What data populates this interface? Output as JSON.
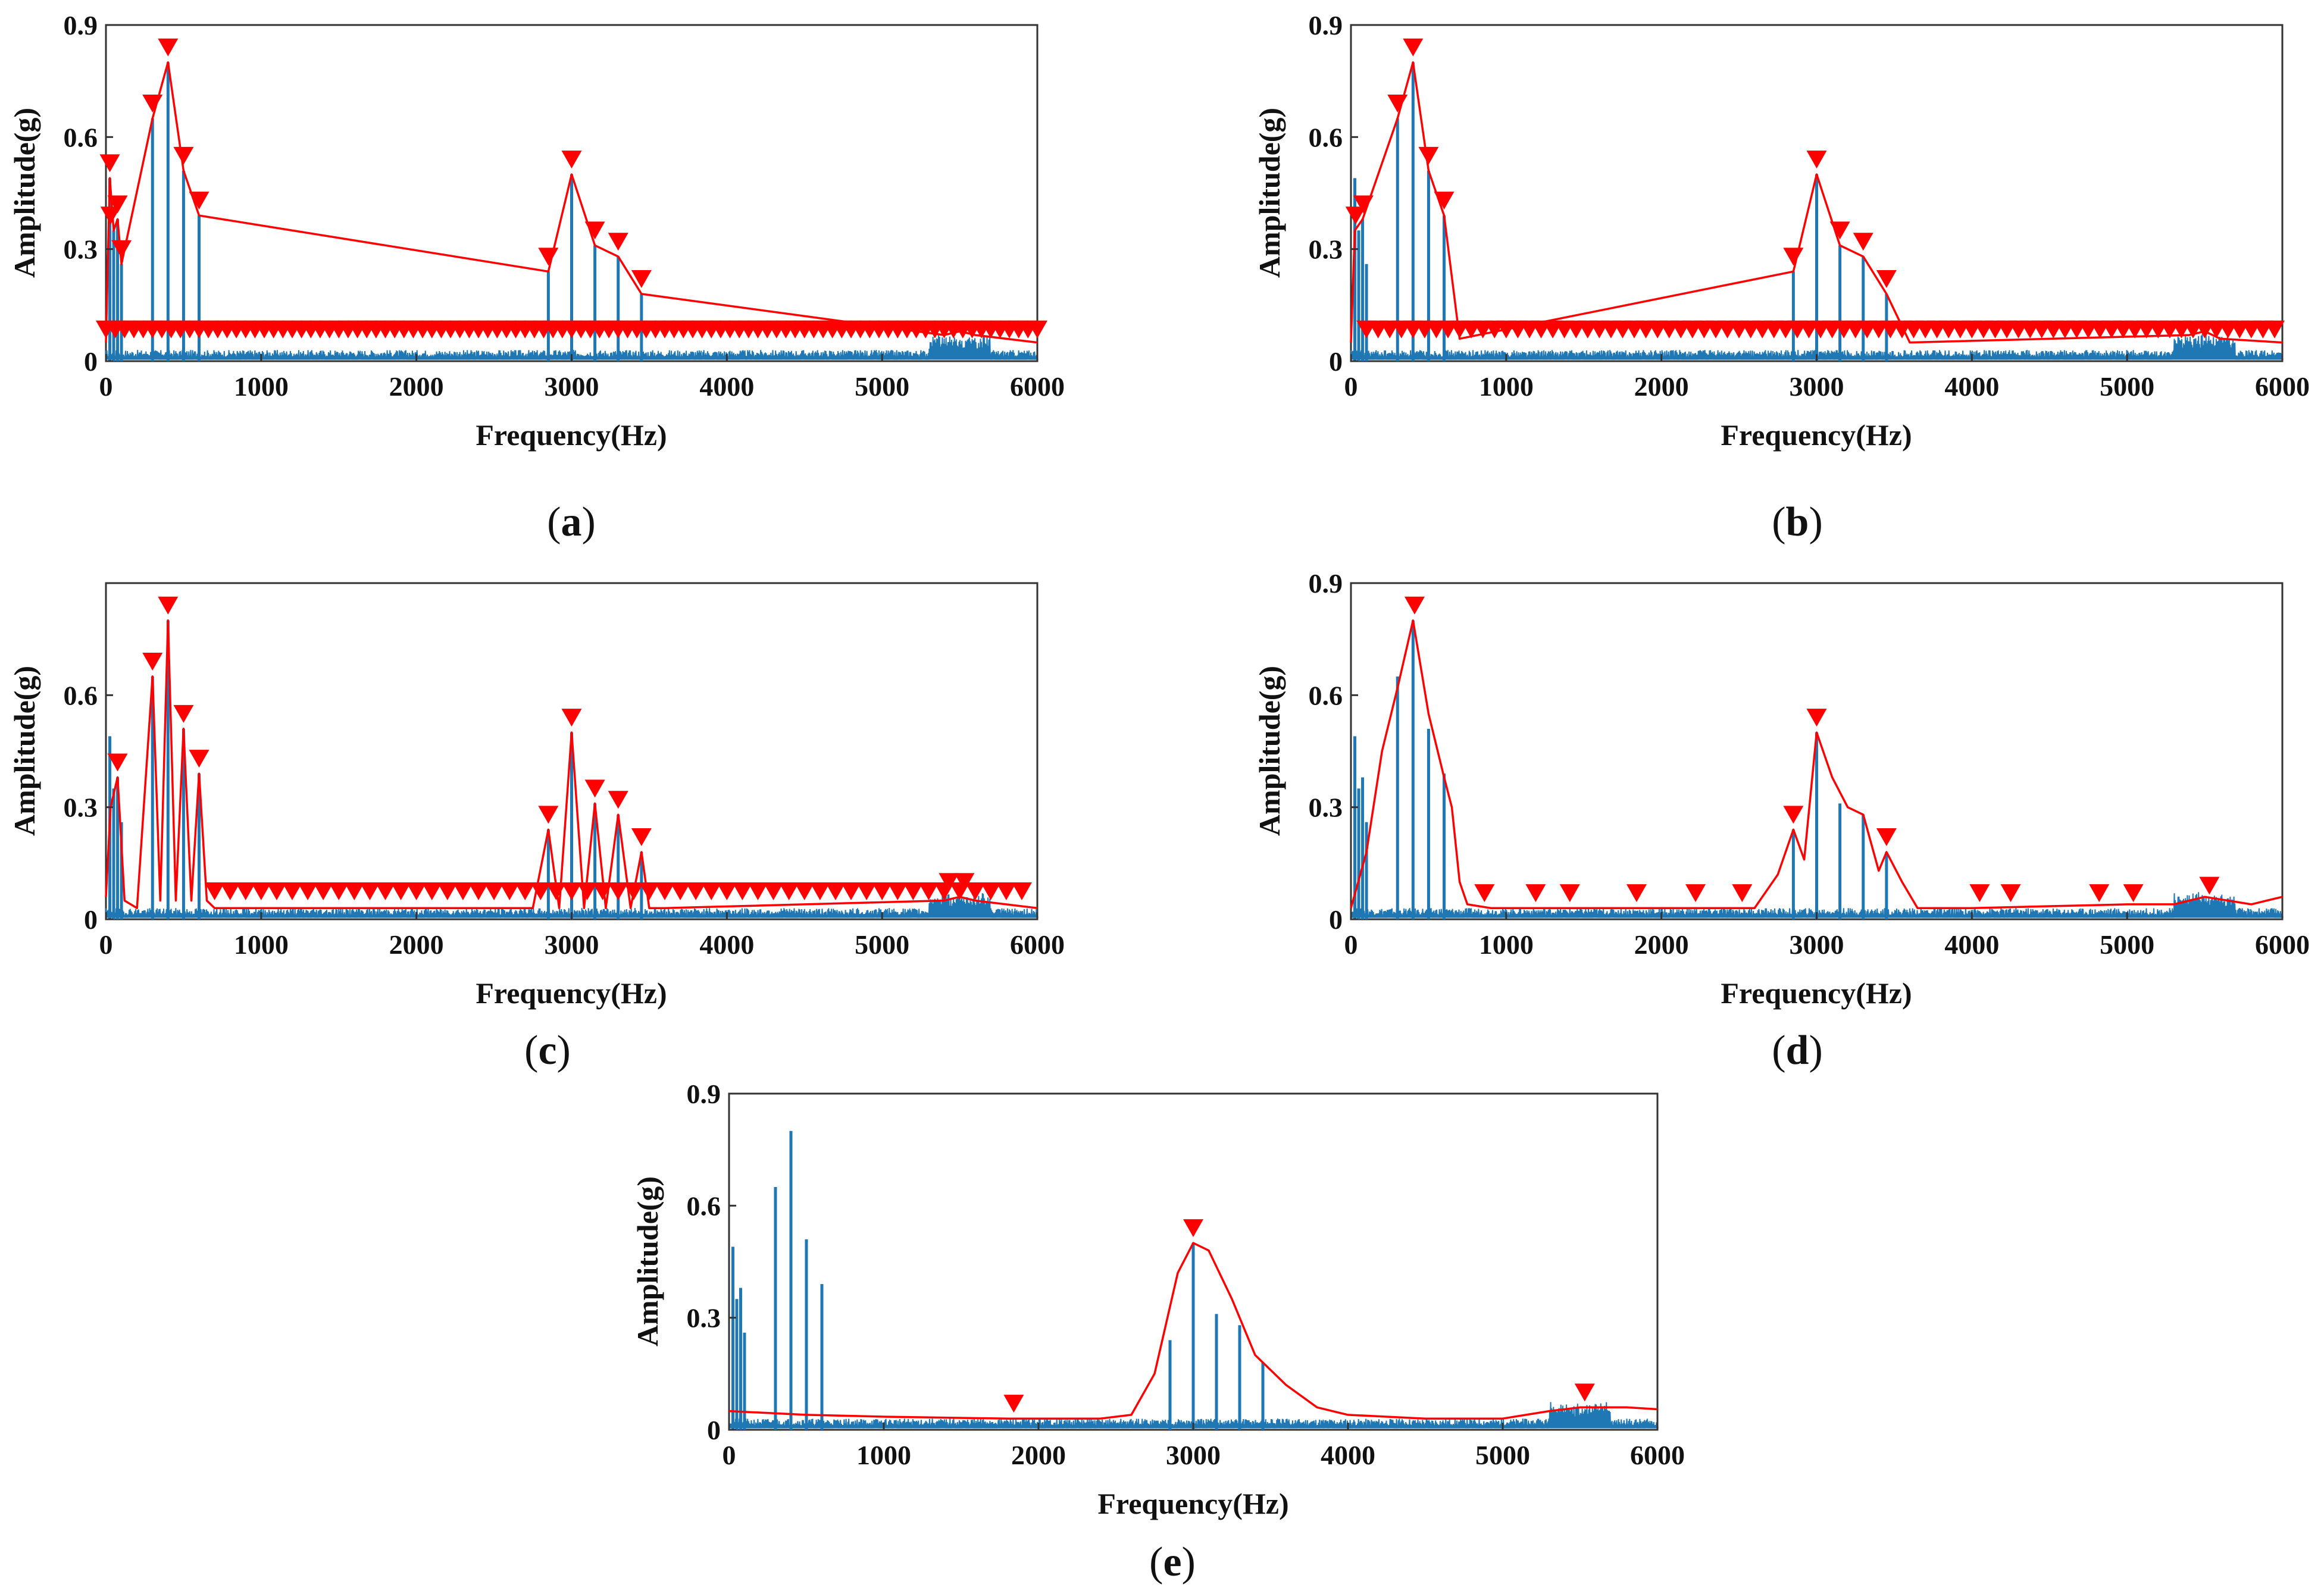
{
  "colors": {
    "spectrum": "#1f77b4",
    "envelope": "#ff0000",
    "marker": "#ff0000",
    "axis": "#333333"
  },
  "figure": {
    "panels": [
      {
        "id": "a",
        "caption": "(a)"
      },
      {
        "id": "b",
        "caption": "(b)"
      },
      {
        "id": "c",
        "caption": "(c)"
      },
      {
        "id": "d",
        "caption": "(d)"
      },
      {
        "id": "e",
        "caption": "(e)"
      }
    ]
  },
  "chart_data": [
    {
      "panel": "a",
      "type": "line",
      "xlabel": "Frequency(Hz)",
      "ylabel": "Amplitude(g)",
      "xlim": [
        0,
        6000
      ],
      "ylim": [
        0,
        0.9
      ],
      "xticks": [
        "0",
        "1000",
        "2000",
        "3000",
        "4000",
        "5000",
        "6000"
      ],
      "yticks": [
        "0",
        "0.3",
        "0.6",
        "0.9"
      ],
      "spectrum_peaks": {
        "x": [
          25,
          50,
          75,
          100,
          300,
          400,
          500,
          600,
          2850,
          3000,
          3150,
          3300,
          3450
        ],
        "y": [
          0.49,
          0.35,
          0.38,
          0.26,
          0.65,
          0.8,
          0.51,
          0.39,
          0.24,
          0.5,
          0.31,
          0.28,
          0.18
        ]
      },
      "envelope": {
        "x": [
          0,
          25,
          50,
          75,
          100,
          300,
          400,
          500,
          600,
          2850,
          3000,
          3150,
          3300,
          3450,
          5400,
          5500,
          5600,
          6000
        ],
        "y": [
          0.05,
          0.49,
          0.35,
          0.38,
          0.26,
          0.65,
          0.8,
          0.51,
          0.39,
          0.24,
          0.5,
          0.31,
          0.28,
          0.18,
          0.07,
          0.08,
          0.07,
          0.05
        ]
      },
      "markers": {
        "x": [
          25,
          30,
          75,
          100,
          300,
          400,
          500,
          600,
          2850,
          3000,
          3150,
          3300,
          3450
        ],
        "y": [
          0.49,
          0.35,
          0.38,
          0.26,
          0.65,
          0.8,
          0.51,
          0.39,
          0.24,
          0.5,
          0.31,
          0.28,
          0.18
        ]
      },
      "dense_markers": {
        "from": 0,
        "to": 6000,
        "step": 60,
        "y": 0.045
      }
    },
    {
      "panel": "b",
      "type": "line",
      "xlabel": "Frequency(Hz)",
      "ylabel": "Amplitude(g)",
      "xlim": [
        0,
        6000
      ],
      "ylim": [
        0,
        0.9
      ],
      "xticks": [
        "0",
        "1000",
        "2000",
        "3000",
        "4000",
        "5000",
        "6000"
      ],
      "yticks": [
        "0",
        "0.3",
        "0.6",
        "0.9"
      ],
      "spectrum_peaks": {
        "x": [
          25,
          50,
          75,
          100,
          300,
          400,
          500,
          600,
          2850,
          3000,
          3150,
          3300,
          3450
        ],
        "y": [
          0.49,
          0.35,
          0.38,
          0.26,
          0.65,
          0.8,
          0.51,
          0.39,
          0.24,
          0.5,
          0.31,
          0.28,
          0.18
        ]
      },
      "envelope": {
        "x": [
          0,
          25,
          75,
          300,
          400,
          500,
          600,
          700,
          2850,
          3000,
          3150,
          3300,
          3450,
          3600,
          5400,
          5500,
          5600,
          6000
        ],
        "y": [
          0.05,
          0.35,
          0.38,
          0.65,
          0.8,
          0.51,
          0.39,
          0.06,
          0.24,
          0.5,
          0.31,
          0.28,
          0.18,
          0.05,
          0.07,
          0.08,
          0.06,
          0.05
        ]
      },
      "markers": {
        "x": [
          30,
          80,
          300,
          400,
          500,
          600,
          2850,
          3000,
          3150,
          3300,
          3450
        ],
        "y": [
          0.35,
          0.38,
          0.65,
          0.8,
          0.51,
          0.39,
          0.24,
          0.5,
          0.31,
          0.28,
          0.18
        ]
      },
      "dense_markers": {
        "from": 100,
        "to": 6000,
        "step": 75,
        "y": 0.045
      }
    },
    {
      "panel": "c",
      "type": "line",
      "xlabel": "Frequency(Hz)",
      "ylabel": "Amplitude(g)",
      "xlim": [
        0,
        6000
      ],
      "ylim": [
        0,
        0.9
      ],
      "xticks": [
        "0",
        "1000",
        "2000",
        "3000",
        "4000",
        "5000",
        "6000"
      ],
      "yticks": [
        "0",
        "0.3",
        "0.6"
      ],
      "spectrum_peaks": {
        "x": [
          25,
          50,
          75,
          100,
          300,
          400,
          500,
          600,
          2850,
          3000,
          3150,
          3300,
          3450
        ],
        "y": [
          0.49,
          0.35,
          0.38,
          0.26,
          0.65,
          0.8,
          0.51,
          0.39,
          0.24,
          0.5,
          0.31,
          0.28,
          0.18
        ]
      },
      "envelope": {
        "x": [
          0,
          30,
          75,
          120,
          200,
          300,
          350,
          400,
          450,
          500,
          550,
          600,
          650,
          700,
          2750,
          2850,
          2920,
          3000,
          3080,
          3150,
          3220,
          3300,
          3380,
          3450,
          3500,
          3600,
          5400,
          5500,
          5600,
          6000
        ],
        "y": [
          0.06,
          0.3,
          0.38,
          0.05,
          0.03,
          0.65,
          0.05,
          0.8,
          0.05,
          0.51,
          0.05,
          0.39,
          0.05,
          0.03,
          0.03,
          0.24,
          0.03,
          0.5,
          0.03,
          0.31,
          0.03,
          0.28,
          0.03,
          0.18,
          0.03,
          0.03,
          0.05,
          0.06,
          0.05,
          0.03
        ]
      },
      "markers": {
        "x": [
          75,
          300,
          400,
          500,
          600,
          2850,
          3000,
          3150,
          3300,
          3450,
          5430,
          5530
        ],
        "y": [
          0.38,
          0.65,
          0.8,
          0.51,
          0.39,
          0.24,
          0.5,
          0.31,
          0.28,
          0.18,
          0.06,
          0.06
        ]
      },
      "dense_markers": {
        "from": 700,
        "to": 5900,
        "step": 100,
        "y": 0.035
      }
    },
    {
      "panel": "d",
      "type": "line",
      "xlabel": "Frequency(Hz)",
      "ylabel": "Amplitude(g)",
      "xlim": [
        0,
        6000
      ],
      "ylim": [
        0,
        0.9
      ],
      "xticks": [
        "0",
        "1000",
        "2000",
        "3000",
        "4000",
        "5000",
        "6000"
      ],
      "yticks": [
        "0",
        "0.3",
        "0.6",
        "0.9"
      ],
      "spectrum_peaks": {
        "x": [
          25,
          50,
          75,
          100,
          300,
          400,
          500,
          600,
          2850,
          3000,
          3150,
          3300,
          3450
        ],
        "y": [
          0.49,
          0.35,
          0.38,
          0.26,
          0.65,
          0.8,
          0.51,
          0.39,
          0.24,
          0.5,
          0.31,
          0.28,
          0.18
        ]
      },
      "envelope": {
        "x": [
          0,
          100,
          200,
          300,
          400,
          500,
          600,
          650,
          700,
          750,
          900,
          1500,
          2600,
          2750,
          2850,
          2920,
          3000,
          3100,
          3200,
          3300,
          3400,
          3450,
          3550,
          3650,
          4000,
          5000,
          5300,
          5500,
          5800,
          6000
        ],
        "y": [
          0.03,
          0.18,
          0.45,
          0.62,
          0.8,
          0.55,
          0.38,
          0.3,
          0.1,
          0.04,
          0.03,
          0.03,
          0.03,
          0.12,
          0.24,
          0.16,
          0.5,
          0.38,
          0.3,
          0.28,
          0.13,
          0.18,
          0.1,
          0.03,
          0.03,
          0.04,
          0.04,
          0.06,
          0.04,
          0.06
        ]
      },
      "markers": {
        "x": [
          410,
          2850,
          3000,
          3450,
          860,
          1190,
          1410,
          1840,
          2220,
          2520,
          4050,
          4250,
          4820,
          5040,
          5530
        ],
        "y": [
          0.8,
          0.24,
          0.5,
          0.18,
          0.03,
          0.03,
          0.03,
          0.03,
          0.03,
          0.03,
          0.03,
          0.03,
          0.03,
          0.03,
          0.05
        ]
      }
    },
    {
      "panel": "e",
      "type": "line",
      "xlabel": "Frequency(Hz)",
      "ylabel": "Amplitude(g)",
      "xlim": [
        0,
        6000
      ],
      "ylim": [
        0,
        0.9
      ],
      "xticks": [
        "0",
        "1000",
        "2000",
        "3000",
        "4000",
        "5000",
        "6000"
      ],
      "yticks": [
        "0",
        "0.3",
        "0.6",
        "0.9"
      ],
      "spectrum_peaks": {
        "x": [
          25,
          50,
          75,
          100,
          300,
          400,
          500,
          600,
          2850,
          3000,
          3150,
          3300,
          3450
        ],
        "y": [
          0.49,
          0.35,
          0.38,
          0.26,
          0.65,
          0.8,
          0.51,
          0.39,
          0.24,
          0.5,
          0.31,
          0.28,
          0.18
        ]
      },
      "envelope": {
        "x": [
          0,
          500,
          1000,
          1800,
          2400,
          2600,
          2750,
          2900,
          3000,
          3100,
          3250,
          3400,
          3600,
          3800,
          4000,
          4500,
          5000,
          5300,
          5500,
          5800,
          6000
        ],
        "y": [
          0.05,
          0.04,
          0.035,
          0.03,
          0.03,
          0.04,
          0.15,
          0.42,
          0.5,
          0.48,
          0.35,
          0.2,
          0.12,
          0.06,
          0.04,
          0.03,
          0.03,
          0.05,
          0.06,
          0.06,
          0.055
        ]
      },
      "markers": {
        "x": [
          1840,
          3000,
          5530
        ],
        "y": [
          0.03,
          0.5,
          0.06
        ]
      }
    }
  ]
}
